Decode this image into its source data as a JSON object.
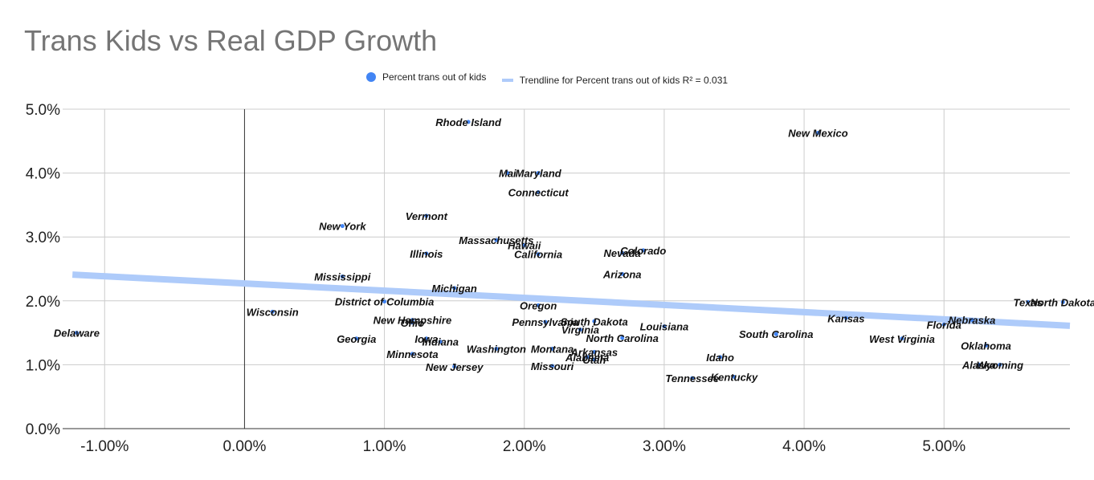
{
  "chart_data": {
    "type": "scatter",
    "title": "Trans Kids vs Real GDP Growth",
    "xlabel": "",
    "ylabel": "",
    "xlim": [
      -1.3,
      5.9
    ],
    "ylim": [
      0,
      5
    ],
    "x_ticks": [
      {
        "v": -1,
        "label": "-1.00%"
      },
      {
        "v": 0,
        "label": "0.00%"
      },
      {
        "v": 1,
        "label": "1.00%"
      },
      {
        "v": 2,
        "label": "2.00%"
      },
      {
        "v": 3,
        "label": "3.00%"
      },
      {
        "v": 4,
        "label": "4.00%"
      },
      {
        "v": 5,
        "label": "5.00%"
      }
    ],
    "y_ticks": [
      {
        "v": 0,
        "label": "0.0%"
      },
      {
        "v": 1,
        "label": "1.0%"
      },
      {
        "v": 2,
        "label": "2.0%"
      },
      {
        "v": 3,
        "label": "3.0%"
      },
      {
        "v": 4,
        "label": "4.0%"
      },
      {
        "v": 5,
        "label": "5.0%"
      }
    ],
    "grid": true,
    "legend_position": "top",
    "legend": [
      {
        "label": "Percent trans out of kids",
        "color": "#4285f4",
        "kind": "dot"
      },
      {
        "label": "Trendline for Percent trans out of kids R² = 0.031",
        "color": "#aecbfa",
        "kind": "line"
      }
    ],
    "trendline": {
      "x": [
        -1.23,
        5.9
      ],
      "y": [
        2.41,
        1.61
      ]
    },
    "points": [
      {
        "label": "Rhode Island",
        "x": 1.6,
        "y": 4.8
      },
      {
        "label": "New Mexico",
        "x": 4.1,
        "y": 4.63
      },
      {
        "label": "Mai",
        "x": 1.88,
        "y": 4.0
      },
      {
        "label": "Maryland",
        "x": 2.1,
        "y": 4.0
      },
      {
        "label": "Connecticut",
        "x": 2.1,
        "y": 3.7
      },
      {
        "label": "Vermont",
        "x": 1.3,
        "y": 3.33
      },
      {
        "label": "New York",
        "x": 0.7,
        "y": 3.17
      },
      {
        "label": "Massachusetts",
        "x": 1.8,
        "y": 2.95
      },
      {
        "label": "Hawaii",
        "x": 2.0,
        "y": 2.87
      },
      {
        "label": "Illinois",
        "x": 1.3,
        "y": 2.74
      },
      {
        "label": "California",
        "x": 2.1,
        "y": 2.73
      },
      {
        "label": "Nevada",
        "x": 2.7,
        "y": 2.75
      },
      {
        "label": "Colorado",
        "x": 2.85,
        "y": 2.79
      },
      {
        "label": "Arizona",
        "x": 2.7,
        "y": 2.42
      },
      {
        "label": "Mississippi",
        "x": 0.7,
        "y": 2.38
      },
      {
        "label": "Michigan",
        "x": 1.5,
        "y": 2.2
      },
      {
        "label": "District of Columbia",
        "x": 1.0,
        "y": 1.99
      },
      {
        "label": "Oregon",
        "x": 2.1,
        "y": 1.93
      },
      {
        "label": "Wisconsin",
        "x": 0.2,
        "y": 1.83
      },
      {
        "label": "New Hampshire",
        "x": 1.2,
        "y": 1.7
      },
      {
        "label": "Ohio",
        "x": 1.2,
        "y": 1.66
      },
      {
        "label": "Pennsylvania",
        "x": 2.15,
        "y": 1.67
      },
      {
        "label": "South Dakota",
        "x": 2.5,
        "y": 1.68
      },
      {
        "label": "Virginia",
        "x": 2.4,
        "y": 1.55
      },
      {
        "label": "Delaware",
        "x": -1.2,
        "y": 1.5
      },
      {
        "label": "Louisiana",
        "x": 3.0,
        "y": 1.6
      },
      {
        "label": "South Carolina",
        "x": 3.8,
        "y": 1.48
      },
      {
        "label": "Georgia",
        "x": 0.8,
        "y": 1.41
      },
      {
        "label": "Iowa",
        "x": 1.3,
        "y": 1.41
      },
      {
        "label": "Indiana",
        "x": 1.4,
        "y": 1.36
      },
      {
        "label": "North Carolina",
        "x": 2.7,
        "y": 1.42
      },
      {
        "label": "Kansas",
        "x": 4.3,
        "y": 1.73
      },
      {
        "label": "West Virginia",
        "x": 4.7,
        "y": 1.41
      },
      {
        "label": "Nebraska",
        "x": 5.2,
        "y": 1.7
      },
      {
        "label": "Florida",
        "x": 5.0,
        "y": 1.63
      },
      {
        "label": "Oklahoma",
        "x": 5.3,
        "y": 1.3
      },
      {
        "label": "Washington",
        "x": 1.8,
        "y": 1.25
      },
      {
        "label": "Montana",
        "x": 2.2,
        "y": 1.25
      },
      {
        "label": "Minnesota",
        "x": 1.2,
        "y": 1.17
      },
      {
        "label": "Arkansas",
        "x": 2.5,
        "y": 1.2
      },
      {
        "label": "Alabama",
        "x": 2.45,
        "y": 1.12
      },
      {
        "label": "Utah",
        "x": 2.5,
        "y": 1.08
      },
      {
        "label": "Idaho",
        "x": 3.4,
        "y": 1.12
      },
      {
        "label": "New Jersey",
        "x": 1.5,
        "y": 0.97
      },
      {
        "label": "Missouri",
        "x": 2.2,
        "y": 0.98
      },
      {
        "label": "Alaska",
        "x": 5.25,
        "y": 1.0
      },
      {
        "label": "Wyoming",
        "x": 5.4,
        "y": 1.0
      },
      {
        "label": "Tennessee",
        "x": 3.2,
        "y": 0.79
      },
      {
        "label": "Kentucky",
        "x": 3.5,
        "y": 0.81
      },
      {
        "label": "Texas",
        "x": 5.6,
        "y": 1.98
      },
      {
        "label": "North Dakota",
        "x": 5.85,
        "y": 1.98
      }
    ]
  }
}
